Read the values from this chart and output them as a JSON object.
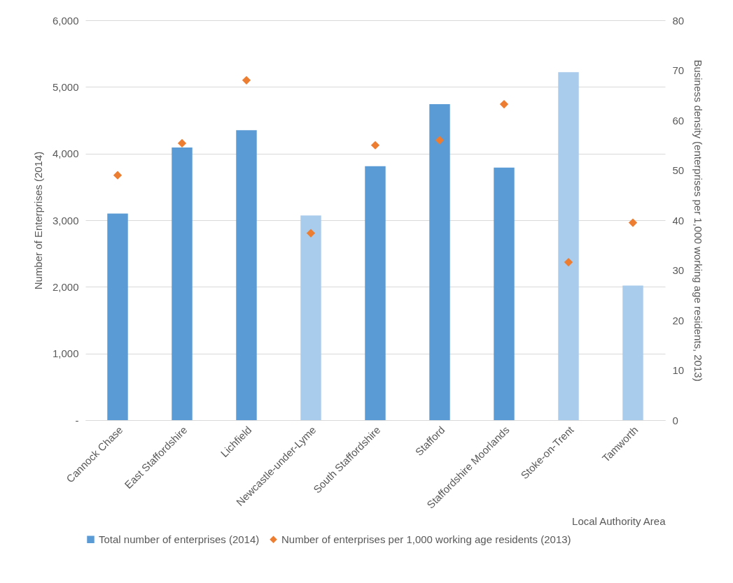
{
  "chart_data": {
    "type": "bar",
    "categories": [
      "Cannock Chase",
      "East Staffordshire",
      "Lichfield",
      "Newcastle-under-Lyme",
      "South Staffordshire",
      "Stafford",
      "Staffordshire Moorlands",
      "Stoke-on-Trent",
      "Tamworth"
    ],
    "series": [
      {
        "name": "Total number of enterprises (2014)",
        "color": "#5b9bd5",
        "colors": [
          "#5b9bd5",
          "#5b9bd5",
          "#5b9bd5",
          "#a9cbec",
          "#5b9bd5",
          "#5b9bd5",
          "#5b9bd5",
          "#a9cbec",
          "#a9cbec"
        ],
        "values": [
          3100,
          4090,
          4350,
          3070,
          3810,
          4740,
          3790,
          5220,
          2020
        ]
      },
      {
        "name": "Number of enterprises per 1,000 working age residents (2013)",
        "type": "scatter",
        "axis": "y2",
        "color": "#ed7d31",
        "values": [
          49.0,
          55.4,
          68.0,
          37.4,
          55.0,
          56.0,
          63.2,
          31.6,
          39.5
        ]
      }
    ],
    "xlabel": "Local Authority Area",
    "ylabel": "Number of Enterprises (2014)",
    "y2label": "Business density (enterprises per 1,000 working age residents, 2013)",
    "ylim": [
      0,
      6000
    ],
    "yticks": [
      {
        "value": 0,
        "label": "-"
      },
      {
        "value": 1000,
        "label": "1,000"
      },
      {
        "value": 2000,
        "label": "2,000"
      },
      {
        "value": 3000,
        "label": "3,000"
      },
      {
        "value": 4000,
        "label": "4,000"
      },
      {
        "value": 5000,
        "label": "5,000"
      },
      {
        "value": 6000,
        "label": "6,000"
      }
    ],
    "y2lim": [
      0,
      80
    ],
    "y2ticks": [
      0,
      10,
      20,
      30,
      40,
      50,
      60,
      70,
      80
    ],
    "grid": "y",
    "legend": "bottom",
    "marker": "diamond"
  }
}
